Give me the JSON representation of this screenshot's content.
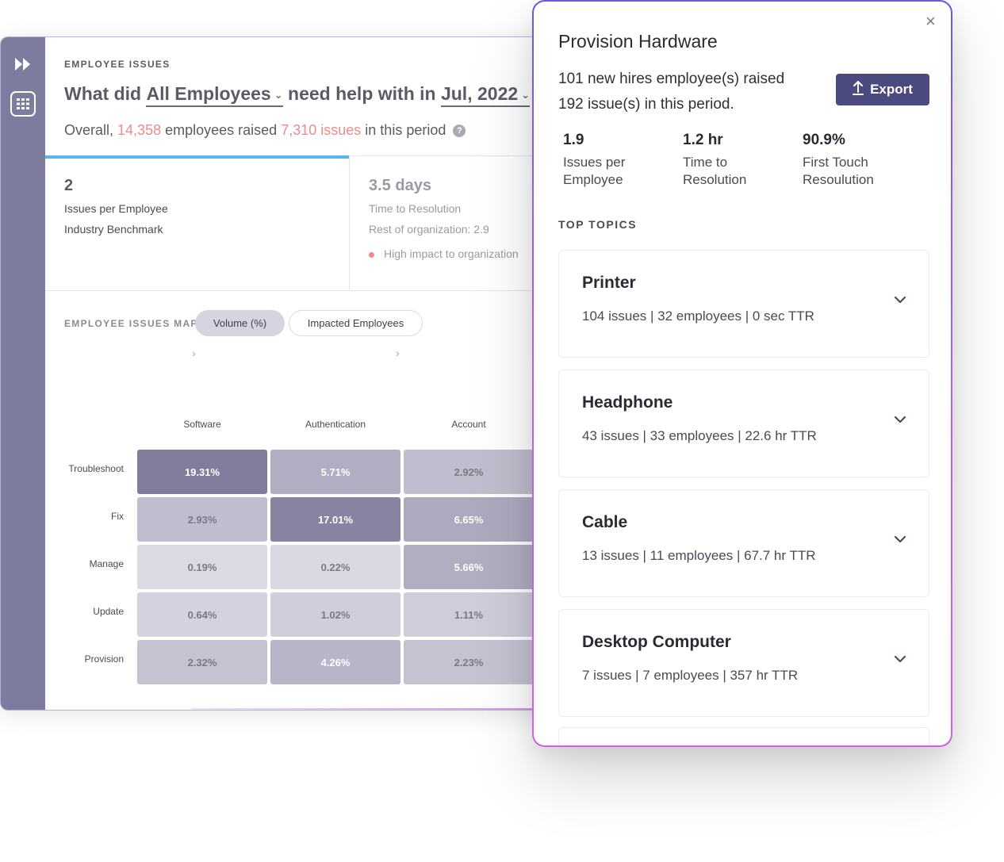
{
  "dashboard": {
    "eyebrow": "EMPLOYEE ISSUES",
    "headline": {
      "prefix": "What did",
      "group": "All Employees",
      "middle": "need help with in",
      "period": "Jul, 2022",
      "suffix": "?"
    },
    "overall": {
      "prefix": "Overall,",
      "employees": "14,358",
      "middle": "employees raised",
      "issues": "7,310 issues",
      "suffix": "in this period",
      "help": "?"
    },
    "metrics": [
      {
        "value": "2",
        "label": "Issues per Employee",
        "sub": "Industry Benchmark"
      },
      {
        "value": "3.5 days",
        "label": "Time to Resolution",
        "sub": "Rest of organization: 2.9",
        "impact": "High impact to organization"
      }
    ],
    "map": {
      "eyebrow": "EMPLOYEE ISSUES MAP",
      "toggles": [
        "Volume (%)",
        "Impacted Employees"
      ],
      "active_toggle": "Volume (%)",
      "columns": [
        "Software",
        "Authentication",
        "Account"
      ],
      "rows": [
        "Troubleshoot",
        "Fix",
        "Manage",
        "Update",
        "Provision"
      ],
      "values": [
        [
          "19.31%",
          "5.71%",
          "2.92%"
        ],
        [
          "2.93%",
          "17.01%",
          "6.65%"
        ],
        [
          "0.19%",
          "0.22%",
          "5.66%"
        ],
        [
          "0.64%",
          "1.02%",
          "1.11%"
        ],
        [
          "2.32%",
          "4.26%",
          "2.23%"
        ]
      ]
    }
  },
  "panel": {
    "title": "Provision Hardware",
    "summary_line1": "101 new hires employee(s) raised",
    "summary_line2": "192 issue(s) in this period.",
    "export_label": "Export",
    "stats": [
      {
        "value": "1.9",
        "label_line1": "Issues per",
        "label_line2": "Employee"
      },
      {
        "value": "1.2 hr",
        "label_line1": "Time to",
        "label_line2": "Resolution"
      },
      {
        "value": "90.9%",
        "label_line1": "First Touch",
        "label_line2": "Resoulution"
      }
    ],
    "topics_eyebrow": "TOP TOPICS",
    "topics": [
      {
        "name": "Printer",
        "meta": "104 issues | 32 employees | 0 sec TTR"
      },
      {
        "name": "Headphone",
        "meta": "43 issues | 33 employees | 22.6 hr TTR"
      },
      {
        "name": "Cable",
        "meta": "13 issues | 11 employees | 67.7 hr TTR"
      },
      {
        "name": "Desktop Computer",
        "meta": "7 issues | 7 employees | 357 hr TTR"
      }
    ]
  }
}
